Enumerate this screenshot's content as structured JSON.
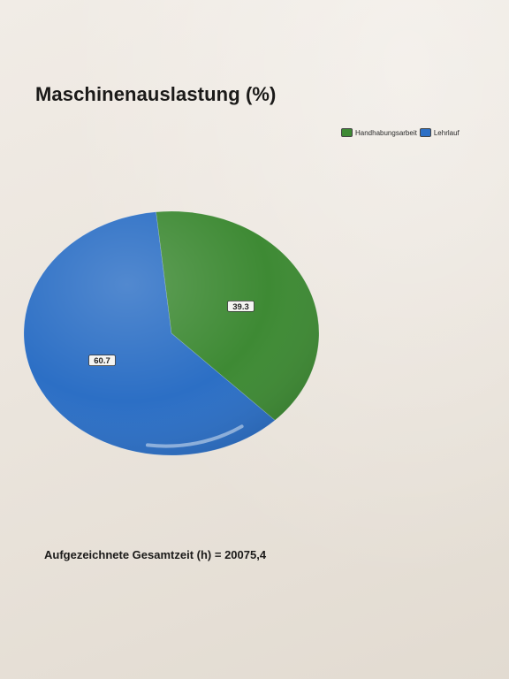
{
  "chart_data": {
    "type": "pie",
    "title": "Maschinenauslastung (%)",
    "labels": [
      "Handhabungsarbeit",
      "Lehrlauf"
    ],
    "values": [
      39.3,
      60.7
    ],
    "data_labels": [
      "39.3",
      "60.7"
    ],
    "colors": [
      "#3e8a34",
      "#2c6fc5"
    ],
    "legend_position": "top-right",
    "legend": [
      {
        "label": "Handhabungsarbeit",
        "color": "#3e8a34"
      },
      {
        "label": "Lehrlauf",
        "color": "#2c6fc5"
      }
    ]
  },
  "footer": {
    "text": "Aufgezeichnete Gesamtzeit (h) = 20075,4"
  }
}
